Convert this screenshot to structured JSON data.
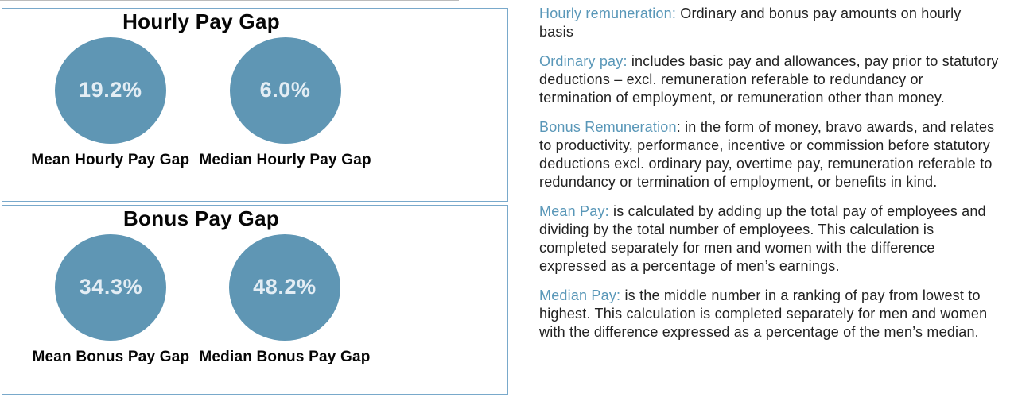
{
  "colors": {
    "circle_fill": "#5f96b4",
    "circle_ring": "#dce9f2",
    "circle_value_text": "#e3edf4",
    "panel_border": "#79a9cb",
    "term_accent": "#5997b8",
    "body_text": "#222222"
  },
  "chart_data": [
    {
      "type": "table",
      "render": "circle-indicators",
      "title": "Hourly Pay Gap",
      "categories": [
        "Mean Hourly Pay Gap",
        "Median Hourly Pay Gap"
      ],
      "values": [
        19.2,
        6.0
      ],
      "unit": "%",
      "value_labels": [
        "19.2%",
        "6.0%"
      ]
    },
    {
      "type": "table",
      "render": "circle-indicators",
      "title": "Bonus Pay Gap",
      "categories": [
        "Mean Bonus Pay Gap",
        "Median Bonus Pay Gap"
      ],
      "values": [
        34.3,
        48.2
      ],
      "unit": "%",
      "value_labels": [
        "34.3%",
        "48.2%"
      ]
    }
  ],
  "definitions": [
    {
      "term": "Hourly remuneration:",
      "body": " Ordinary and bonus pay amounts on hourly basis"
    },
    {
      "term": "Ordinary pay:",
      "body": " includes basic pay and allowances, pay prior to statutory deductions – excl. remuneration referable to redundancy or termination of employment, or remuneration other than money."
    },
    {
      "term": "Bonus Remuneration",
      "body": ": in the form of money, bravo awards, and relates to productivity, performance, incentive or commission before statutory deductions excl. ordinary pay, overtime pay, remuneration referable to redundancy or termination of employment, or benefits in kind."
    },
    {
      "term": "Mean Pay:",
      "body": " is calculated by adding up the total pay of employees and dividing by the total number of employees. This calculation is completed separately for men and women with the difference expressed as a percentage of men’s earnings."
    },
    {
      "term": "Median Pay:",
      "body": " is the middle number in a ranking of pay from lowest to highest. This calculation is completed separately for men and women with the difference expressed as a percentage of the men’s median."
    }
  ]
}
